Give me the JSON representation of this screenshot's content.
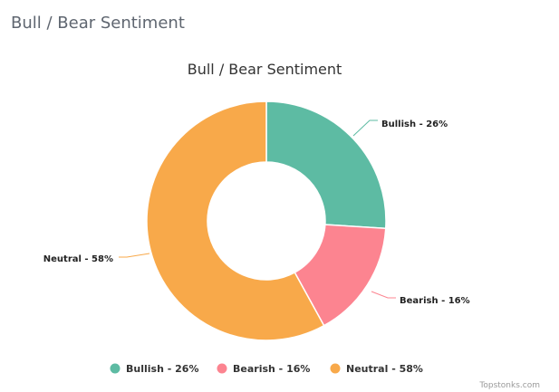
{
  "page": {
    "heading": "Bull / Bear Sentiment"
  },
  "chart_data": {
    "type": "pie",
    "variant": "donut",
    "title": "Bull / Bear Sentiment",
    "categories": [
      "Bullish",
      "Bearish",
      "Neutral"
    ],
    "values": [
      26,
      16,
      58
    ],
    "unit": "%",
    "labels": [
      "Bullish - 26%",
      "Bearish - 16%",
      "Neutral - 58%"
    ],
    "colors": [
      "#5dbba3",
      "#fc8490",
      "#f8a94a"
    ],
    "legend": {
      "position": "bottom",
      "show": true
    },
    "credit": "Topstonks.com"
  }
}
